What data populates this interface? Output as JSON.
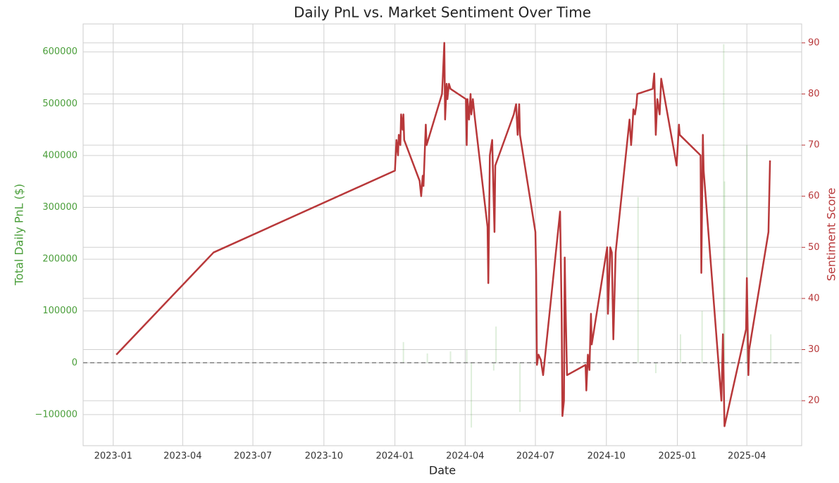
{
  "chart_data": {
    "type": "bar-line",
    "title": "Daily PnL vs. Market Sentiment Over Time",
    "xlabel": "Date",
    "ylabel": "Total Daily PnL ($)",
    "y2label": "Sentiment Score",
    "xlim": [
      "2022-11-23",
      "2025-06-11"
    ],
    "xticks": [
      {
        "value": "2023-01-01",
        "label": "2023-01"
      },
      {
        "value": "2023-04-01",
        "label": "2023-04"
      },
      {
        "value": "2023-07-01",
        "label": "2023-07"
      },
      {
        "value": "2023-10-01",
        "label": "2023-10"
      },
      {
        "value": "2024-01-01",
        "label": "2024-01"
      },
      {
        "value": "2024-04-01",
        "label": "2024-04"
      },
      {
        "value": "2024-07-01",
        "label": "2024-07"
      },
      {
        "value": "2024-10-01",
        "label": "2024-10"
      },
      {
        "value": "2025-01-01",
        "label": "2025-01"
      },
      {
        "value": "2025-04-01",
        "label": "2025-04"
      }
    ],
    "ylim": [
      -160000,
      654000
    ],
    "yticks": [
      {
        "value": -100000,
        "label": "−100000"
      },
      0,
      100000,
      200000,
      300000,
      400000,
      500000,
      600000
    ],
    "y2lim": [
      11.2,
      93.7
    ],
    "y2ticks": [
      20,
      30,
      40,
      50,
      60,
      70,
      80,
      90
    ],
    "ycolor": "#4a9e3a",
    "y2color": "#b8383a",
    "grid": true,
    "hline": 0,
    "series": [
      {
        "type": "bar",
        "color": "#4a9e3a",
        "x": [
          "2024-01-12",
          "2024-02-12",
          "2024-03-13",
          "2024-04-03",
          "2024-04-09",
          "2024-05-08",
          "2024-05-11",
          "2024-06-11",
          "2024-11-11",
          "2024-12-04",
          "2025-01-05",
          "2025-02-02",
          "2025-03-02",
          "2025-03-03",
          "2025-04-01",
          "2025-05-02"
        ],
        "values": [
          40000,
          18000,
          22000,
          25000,
          -125000,
          -15000,
          70000,
          -95000,
          320000,
          -20000,
          55000,
          100000,
          615000,
          350000,
          420000,
          55000
        ]
      },
      {
        "type": "line",
        "axis": "y2",
        "color": "#b8383a",
        "x": [
          "2023-01-05",
          "2023-05-11",
          "2024-01-01",
          "2024-01-03",
          "2024-01-05",
          "2024-01-06",
          "2024-01-08",
          "2024-01-09",
          "2024-01-11",
          "2024-01-12",
          "2024-01-13",
          "2024-02-02",
          "2024-02-04",
          "2024-02-06",
          "2024-02-07",
          "2024-02-10",
          "2024-02-11",
          "2024-03-02",
          "2024-03-03",
          "2024-03-05",
          "2024-03-06",
          "2024-03-08",
          "2024-03-09",
          "2024-03-11",
          "2024-03-13",
          "2024-04-02",
          "2024-04-03",
          "2024-04-04",
          "2024-04-06",
          "2024-04-08",
          "2024-04-09",
          "2024-04-11",
          "2024-04-13",
          "2024-04-30",
          "2024-05-01",
          "2024-05-03",
          "2024-05-06",
          "2024-05-09",
          "2024-05-10",
          "2024-06-03",
          "2024-06-06",
          "2024-06-08",
          "2024-06-10",
          "2024-06-11",
          "2024-07-01",
          "2024-07-02",
          "2024-07-03",
          "2024-07-05",
          "2024-07-08",
          "2024-07-11",
          "2024-08-02",
          "2024-08-04",
          "2024-08-05",
          "2024-08-07",
          "2024-08-08",
          "2024-08-09",
          "2024-08-11",
          "2024-09-04",
          "2024-09-05",
          "2024-09-07",
          "2024-09-09",
          "2024-09-11",
          "2024-09-12",
          "2024-10-02",
          "2024-10-03",
          "2024-10-06",
          "2024-10-08",
          "2024-10-10",
          "2024-10-13",
          "2024-10-31",
          "2024-11-02",
          "2024-11-03",
          "2024-11-05",
          "2024-11-07",
          "2024-11-09",
          "2024-11-10",
          "2024-11-30",
          "2024-12-02",
          "2024-12-04",
          "2024-12-06",
          "2024-12-09",
          "2024-12-11",
          "2024-12-31",
          "2025-01-03",
          "2025-01-04",
          "2025-01-31",
          "2025-02-01",
          "2025-02-03",
          "2025-02-04",
          "2025-02-27",
          "2025-03-01",
          "2025-03-03",
          "2025-03-31",
          "2025-04-01",
          "2025-04-03",
          "2025-04-04",
          "2025-04-29",
          "2025-05-01"
        ],
        "values": [
          29,
          49,
          65,
          71,
          68,
          72,
          70,
          76,
          73,
          76,
          71,
          63,
          60,
          64,
          62,
          74,
          70,
          80,
          83,
          90,
          75,
          82,
          79,
          82,
          81,
          79,
          70,
          79,
          75,
          80,
          76,
          79,
          76,
          54,
          43,
          68,
          71,
          53,
          66,
          76,
          78,
          72,
          78,
          72,
          53,
          45,
          27,
          29,
          28,
          25,
          57,
          37,
          17,
          20,
          48,
          39,
          25,
          27,
          22,
          29,
          26,
          37,
          31,
          50,
          37,
          50,
          49,
          32,
          49,
          75,
          70,
          72,
          77,
          76,
          78,
          80,
          81,
          84,
          72,
          79,
          76,
          83,
          66,
          74,
          72,
          68,
          45,
          72,
          65,
          20,
          33,
          15,
          34,
          44,
          25,
          30,
          53,
          67
        ]
      }
    ]
  }
}
